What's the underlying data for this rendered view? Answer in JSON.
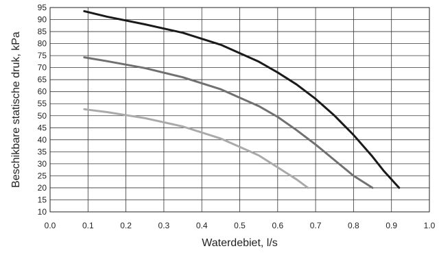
{
  "chart_data": {
    "type": "line",
    "title": "",
    "xlabel": "Waterdebiet, l/s",
    "ylabel": "Beschikbare statische druk, kPa",
    "xlim": [
      0.0,
      1.0
    ],
    "ylim": [
      10,
      95
    ],
    "x_ticks": [
      "0.0",
      "0.1",
      "0.2",
      "0.3",
      "0.4",
      "0.5",
      "0.6",
      "0.7",
      "0.8",
      "0.9",
      "1.0"
    ],
    "y_ticks": [
      "10",
      "15",
      "20",
      "25",
      "30",
      "35",
      "40",
      "45",
      "50",
      "55",
      "60",
      "65",
      "70",
      "75",
      "80",
      "85",
      "90",
      "95"
    ],
    "grid": true,
    "legend": "none",
    "series": [
      {
        "color": "#1a1a1a",
        "x": [
          0.09,
          0.15,
          0.25,
          0.35,
          0.45,
          0.55,
          0.6,
          0.65,
          0.7,
          0.75,
          0.8,
          0.85,
          0.88,
          0.92
        ],
        "y": [
          93.5,
          91.2,
          88.0,
          84.5,
          79.5,
          72.5,
          68.0,
          63.0,
          57.0,
          50.0,
          42.0,
          33.0,
          27.0,
          20.0
        ]
      },
      {
        "color": "#707070",
        "x": [
          0.09,
          0.15,
          0.25,
          0.35,
          0.45,
          0.55,
          0.6,
          0.65,
          0.7,
          0.75,
          0.8,
          0.85
        ],
        "y": [
          74.3,
          72.7,
          69.8,
          66.0,
          61.0,
          54.0,
          49.5,
          44.0,
          38.0,
          31.5,
          25.0,
          20.0
        ]
      },
      {
        "color": "#aaaaaa",
        "x": [
          0.09,
          0.15,
          0.25,
          0.35,
          0.45,
          0.5,
          0.55,
          0.6,
          0.65,
          0.68
        ],
        "y": [
          52.7,
          51.5,
          49.0,
          45.5,
          40.5,
          37.0,
          33.5,
          28.5,
          23.5,
          20.0
        ]
      }
    ]
  }
}
